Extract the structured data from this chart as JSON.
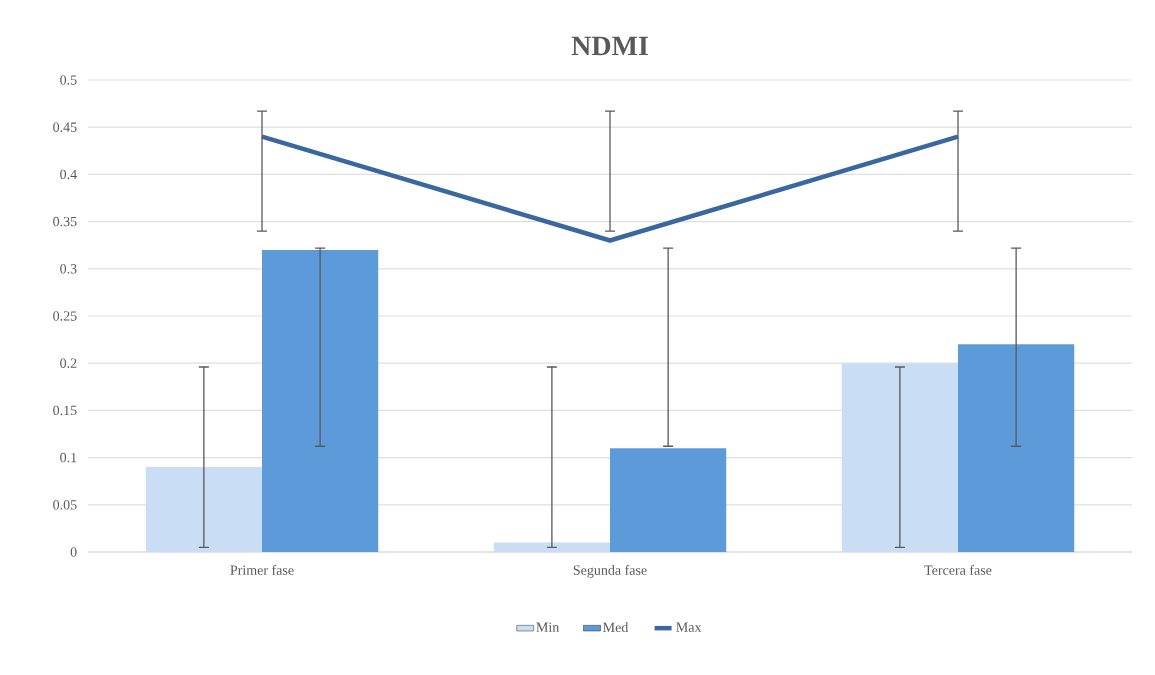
{
  "chart_data": {
    "type": "bar",
    "title": "NDMI",
    "categories": [
      "Primer fase",
      "Segunda fase",
      "Tercera fase"
    ],
    "series": [
      {
        "name": "Min",
        "color": "#c9def4",
        "values": [
          0.09,
          0.01,
          0.2
        ],
        "errors": [
          [
            0.005,
            0.196
          ],
          [
            0.005,
            0.196
          ],
          [
            0.005,
            0.196
          ]
        ]
      },
      {
        "name": "Med",
        "color": "#5d9ad9",
        "values": [
          0.32,
          0.11,
          0.22
        ],
        "errors": [
          [
            0.112,
            0.322
          ],
          [
            0.112,
            0.322
          ],
          [
            0.112,
            0.322
          ]
        ]
      },
      {
        "name": "Max",
        "type": "line",
        "color": "#3a67a0",
        "values": [
          0.44,
          0.33,
          0.44
        ],
        "errors": [
          [
            0.34,
            0.467
          ],
          [
            0.34,
            0.467
          ],
          [
            0.34,
            0.467
          ]
        ]
      }
    ],
    "ylim": [
      0,
      0.5
    ],
    "yticks": [
      0,
      0.05,
      0.1,
      0.15,
      0.2,
      0.25,
      0.3,
      0.35,
      0.4,
      0.45,
      0.5
    ],
    "grid": "y",
    "legend": "bottom",
    "marker": "none"
  }
}
